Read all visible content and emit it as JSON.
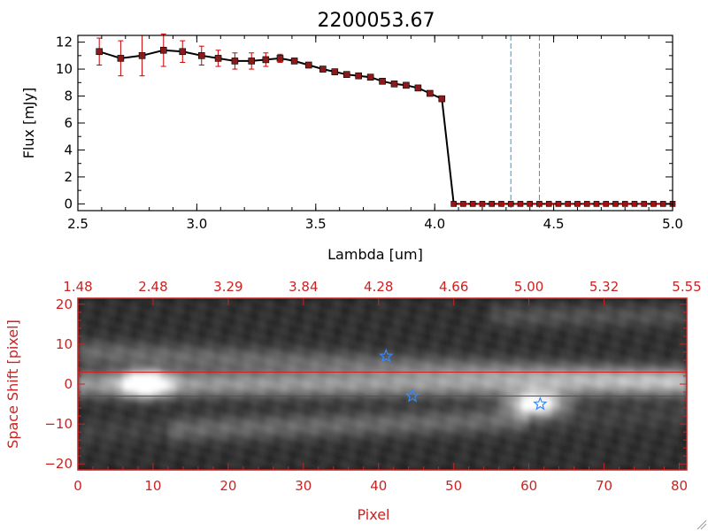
{
  "title": "2200053.67",
  "chart_data": [
    {
      "type": "line",
      "title": "2200053.67",
      "xlabel": "Lambda [um]",
      "ylabel": "Flux [mJy]",
      "xlim": [
        2.5,
        5.0
      ],
      "ylim": [
        -0.5,
        12.5
      ],
      "x_ticks": [
        2.5,
        3.0,
        3.5,
        4.0,
        4.5,
        5.0
      ],
      "x_tick_labels": [
        "2.5",
        "3.0",
        "3.5",
        "4.0",
        "4.5",
        "5.0"
      ],
      "y_ticks": [
        0,
        2,
        4,
        6,
        8,
        10,
        12
      ],
      "y_tick_labels": [
        "0",
        "2",
        "4",
        "6",
        "8",
        "10",
        "12"
      ],
      "series": [
        {
          "name": "flux",
          "color": "#000000",
          "marker_color": "#8b1a1a",
          "error_color": "#cc0000",
          "x": [
            2.59,
            2.68,
            2.77,
            2.86,
            2.94,
            3.02,
            3.09,
            3.16,
            3.23,
            3.29,
            3.35,
            3.41,
            3.47,
            3.53,
            3.58,
            3.63,
            3.68,
            3.73,
            3.78,
            3.83,
            3.88,
            3.93,
            3.98,
            4.03,
            4.08,
            4.12,
            4.16,
            4.2,
            4.24,
            4.28,
            4.32,
            4.36,
            4.4,
            4.44,
            4.48,
            4.52,
            4.56,
            4.6,
            4.64,
            4.68,
            4.72,
            4.76,
            4.8,
            4.84,
            4.88,
            4.92,
            4.96,
            5.0
          ],
          "y": [
            11.3,
            10.8,
            11.0,
            11.4,
            11.3,
            11.0,
            10.8,
            10.6,
            10.6,
            10.7,
            10.8,
            10.6,
            10.3,
            10.0,
            9.8,
            9.6,
            9.5,
            9.4,
            9.1,
            8.9,
            8.8,
            8.6,
            8.2,
            7.8,
            0,
            0,
            0,
            0,
            0,
            0,
            0,
            0,
            0,
            0,
            0,
            0,
            0,
            0,
            0,
            0,
            0,
            0,
            0,
            0,
            0,
            0,
            0,
            0
          ],
          "yerr": [
            1.0,
            1.3,
            1.5,
            1.2,
            0.8,
            0.7,
            0.6,
            0.6,
            0.6,
            0.5,
            0.3,
            0.2,
            0.2,
            0.2,
            0.2,
            0.1,
            0.1,
            0.1,
            0.1,
            0.1,
            0.1,
            0.1,
            0.1,
            0.1,
            0,
            0,
            0,
            0,
            0,
            0,
            0,
            0,
            0,
            0,
            0,
            0,
            0,
            0,
            0,
            0,
            0,
            0,
            0,
            0,
            0,
            0,
            0,
            0
          ]
        }
      ],
      "vlines": [
        {
          "x": 4.32,
          "color": "#3399cc",
          "style": "dashed"
        },
        {
          "x": 4.44,
          "color": "#3399cc",
          "style": "dashed"
        }
      ],
      "hline": {
        "y": 0,
        "color": "#cc0000",
        "style": "dashed"
      }
    },
    {
      "type": "heatmap",
      "xlabel": "Pixel",
      "ylabel": "Space Shift [pixel]",
      "xlim": [
        0,
        81
      ],
      "ylim": [
        -21.5,
        21.5
      ],
      "x_ticks": [
        0,
        10,
        20,
        30,
        40,
        50,
        60,
        70,
        80
      ],
      "x_tick_labels": [
        "0",
        "10",
        "20",
        "30",
        "40",
        "50",
        "60",
        "70",
        "80"
      ],
      "y_ticks": [
        -20,
        -10,
        0,
        10,
        20
      ],
      "y_tick_labels": [
        "−20",
        "−10",
        "0",
        "10",
        "20"
      ],
      "top_ticks": [
        0,
        10,
        20,
        30,
        40,
        50,
        60,
        70,
        81
      ],
      "top_tick_labels": [
        "1.48",
        "2.48",
        "3.29",
        "3.84",
        "4.28",
        "4.66",
        "5.00",
        "5.32",
        "5.55"
      ],
      "axis_color": "#cc2222",
      "extraction_lines": [
        -3,
        3
      ],
      "bright_blobs": [
        {
          "x": 9,
          "y": 0,
          "intensity": 1.0,
          "sx": 3,
          "sy": 3
        },
        {
          "x": 61,
          "y": -5,
          "intensity": 0.95,
          "sx": 3.5,
          "sy": 3
        }
      ],
      "stars": [
        {
          "x": 41,
          "y": 7,
          "color": "#3388ff"
        },
        {
          "x": 44.5,
          "y": -3,
          "color": "#3388ff"
        },
        {
          "x": 61.5,
          "y": -5,
          "color": "#3388ff"
        }
      ]
    }
  ]
}
